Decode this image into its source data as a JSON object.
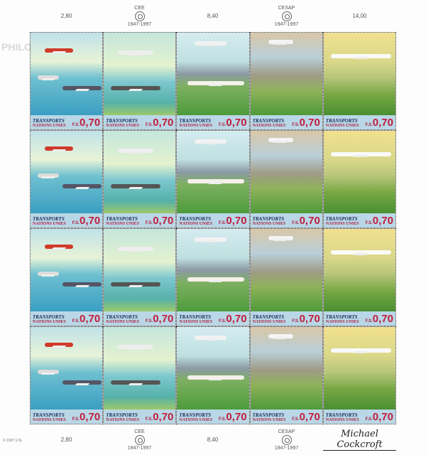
{
  "top_margin": {
    "cells": [
      {
        "type": "value",
        "text": "2,80"
      },
      {
        "type": "emblem",
        "caption_top": "CEE",
        "caption_bottom": "1947-1997"
      },
      {
        "type": "value",
        "text": "8,40"
      },
      {
        "type": "emblem",
        "caption_top": "CESAP",
        "caption_bottom": "1947-1997"
      },
      {
        "type": "value",
        "text": "14,00"
      }
    ]
  },
  "bottom_margin": {
    "imprint": "© 1997 U.N.",
    "cells": [
      {
        "type": "value",
        "text": "2,80"
      },
      {
        "type": "emblem",
        "caption_top": "CEE",
        "caption_bottom": "1947-1997"
      },
      {
        "type": "value",
        "text": "8,40"
      },
      {
        "type": "emblem",
        "caption_top": "CESAP",
        "caption_bottom": "1947-1997"
      },
      {
        "type": "signature",
        "text": "Michael Cockcroft"
      }
    ]
  },
  "watermark": "PHILOTEA",
  "stamp": {
    "title": "TRANSPORTS",
    "subtitle": "NATIONS UNIES",
    "currency": "F.S.",
    "value": "0,70"
  },
  "rows": 4,
  "columns": 5,
  "colors": {
    "label_band": "#b9d7e6",
    "price_red": "#c21c3c",
    "title_blue": "#1c2c5c"
  }
}
